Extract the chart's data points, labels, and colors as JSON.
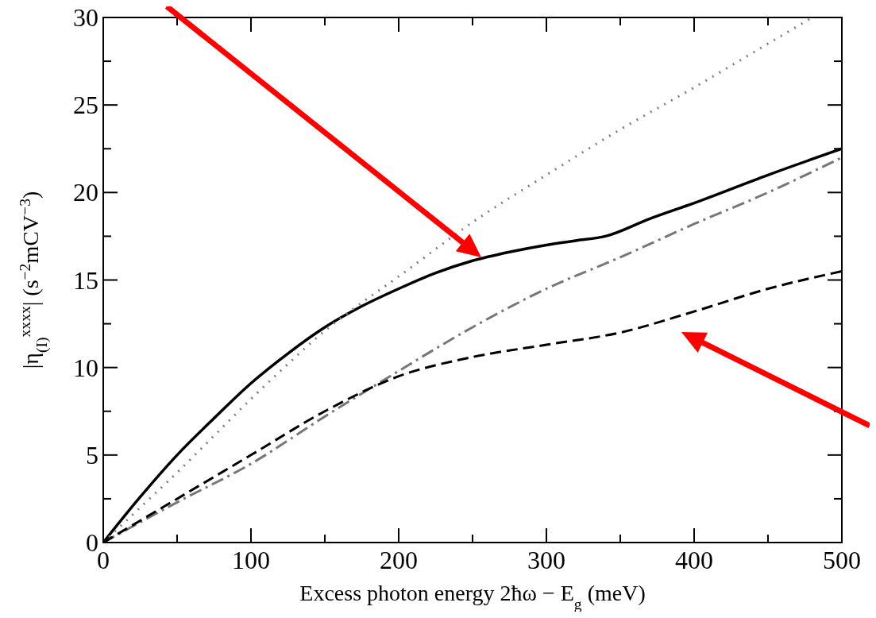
{
  "chart_data": {
    "type": "line",
    "xlabel": "Excess photon energy 2ħω − E$_{g}$ (meV)",
    "ylabel": "|η$_{(I)}$$^{xxxx}$| (s$^{−2}$mCV$^{−3}$)",
    "xlim": [
      0,
      500
    ],
    "ylim": [
      0,
      30
    ],
    "xticks": [
      0,
      {
        "value": 50,
        "label": null
      },
      100,
      {
        "value": 150,
        "label": null
      },
      200,
      {
        "value": 250,
        "label": null
      },
      300,
      {
        "value": 350,
        "label": null
      },
      400,
      {
        "value": 450,
        "label": null
      },
      500
    ],
    "yticks": [
      0,
      {
        "value": 2.5,
        "label": null
      },
      5,
      {
        "value": 7.5,
        "label": null
      },
      10,
      {
        "value": 12.5,
        "label": null
      },
      15,
      {
        "value": 17.5,
        "label": null
      },
      20,
      {
        "value": 22.5,
        "label": null
      },
      25,
      {
        "value": 27.5,
        "label": null
      },
      30
    ],
    "grid": false,
    "marker": "none",
    "series": [
      {
        "color": "#000000",
        "line_style": "solid",
        "x": [
          0,
          25,
          50,
          75,
          100,
          125,
          150,
          175,
          200,
          225,
          250,
          275,
          300,
          320,
          340,
          370,
          400,
          450,
          500
        ],
        "values": [
          0,
          2.6,
          5.0,
          7.1,
          9.1,
          10.8,
          12.3,
          13.5,
          14.5,
          15.4,
          16.1,
          16.6,
          17.0,
          17.25,
          17.5,
          18.5,
          19.4,
          21.0,
          22.5
        ]
      },
      {
        "color": "#808080",
        "line_style": "dotted",
        "x": [
          0,
          25,
          50,
          75,
          100,
          125,
          150,
          175,
          200,
          250,
          300,
          350,
          400,
          450,
          480
        ],
        "values": [
          0,
          2.0,
          4.0,
          6.1,
          8.2,
          10.2,
          12.1,
          13.7,
          15.2,
          18.3,
          21.0,
          23.6,
          26.0,
          28.5,
          30
        ]
      },
      {
        "color": "#777777",
        "line_style": "dashdot",
        "x": [
          0,
          50,
          100,
          150,
          200,
          250,
          300,
          350,
          400,
          450,
          500
        ],
        "values": [
          0,
          2.3,
          4.5,
          7.2,
          9.8,
          12.3,
          14.5,
          16.3,
          18.2,
          20.0,
          22.0
        ]
      },
      {
        "color": "#000000",
        "line_style": "dashed",
        "x": [
          0,
          50,
          100,
          150,
          200,
          250,
          300,
          350,
          400,
          450,
          500
        ],
        "values": [
          0,
          2.5,
          5.0,
          7.5,
          9.5,
          10.6,
          11.3,
          12.0,
          13.2,
          14.5,
          15.5
        ]
      }
    ]
  }
}
